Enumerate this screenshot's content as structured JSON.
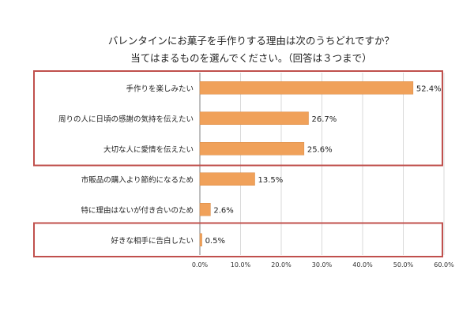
{
  "chart_data": {
    "type": "bar",
    "orientation": "horizontal",
    "title": "バレンタインにお菓子を手作りする理由は次のうちどれですか？",
    "subtitle": "当てはまるものを選んでください。（回答は３つまで）",
    "categories": [
      "手作りを楽しみたい",
      "周りの人に日頃の感謝の気持を伝えたい",
      "大切な人に愛情を伝えたい",
      "市販品の購入より節約になるため",
      "特に理由はないが付き合いのため",
      "好きな相手に告白したい"
    ],
    "values": [
      52.4,
      26.7,
      25.6,
      13.5,
      2.6,
      0.5
    ],
    "value_labels": [
      "52.4%",
      "26.7%",
      "25.6%",
      "13.5%",
      "2.6%",
      "0.5%"
    ],
    "xlim": [
      0,
      60
    ],
    "ticks": [
      0,
      10,
      20,
      30,
      40,
      50,
      60
    ],
    "tick_labels": [
      "0.0%",
      "10.0%",
      "20.0%",
      "30.0%",
      "40.0%",
      "50.0%",
      "60.0%"
    ],
    "xlabel": "",
    "ylabel": "",
    "grid": true,
    "highlight_groups": [
      [
        0,
        2
      ],
      [
        5,
        5
      ]
    ],
    "colors": {
      "bar": "#F0A15A",
      "bar_edge": "#D88A45",
      "highlight_border": "#C0504D",
      "grid": "#D9D9D9",
      "axis": "#7F7F7F"
    }
  }
}
